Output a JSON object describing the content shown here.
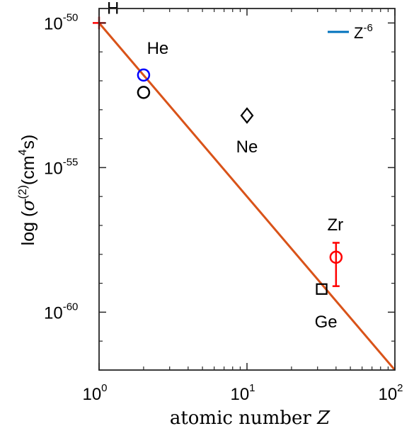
{
  "chart_data": {
    "type": "scatter",
    "x_scale": "log",
    "y_scale": "log",
    "xlim": [
      1,
      100
    ],
    "ylim_exponent": [
      -62,
      -49.5
    ],
    "xlabel_text": "atomic number ",
    "xlabel_symbol": "Z",
    "ylabel": {
      "prefix": "log (",
      "sigma": "σ",
      "sigma_sup": "(2)",
      "mid": "(cm",
      "cm_sup": "4",
      "suffix": "s)"
    },
    "x_ticks": [
      {
        "value": 1,
        "base": "10",
        "exp": "0"
      },
      {
        "value": 10,
        "base": "10",
        "exp": "1"
      },
      {
        "value": 100,
        "base": "10",
        "exp": "2"
      }
    ],
    "y_ticks": [
      {
        "value": -50,
        "base": "10",
        "exp": "-50"
      },
      {
        "value": -55,
        "base": "10",
        "exp": "-55"
      },
      {
        "value": -60,
        "base": "10",
        "exp": "-60"
      }
    ],
    "legend": {
      "label_base": "Z",
      "label_exp": "-6",
      "color": "#0072BD",
      "position": "top-right"
    },
    "fit_line": {
      "color": "#D95319",
      "points": [
        [
          1,
          -50
        ],
        [
          100,
          -62
        ]
      ]
    },
    "points": [
      {
        "label": "H",
        "x": 1,
        "y": -50,
        "marker": "plus",
        "color": "#FF0000"
      },
      {
        "label": "He",
        "x": 2,
        "y": -51.8,
        "marker": "circle",
        "color": "#0000FF"
      },
      {
        "label": "",
        "x": 2,
        "y": -52.4,
        "marker": "circle",
        "color": "#000000"
      },
      {
        "label": "Ne",
        "x": 10,
        "y": -53.2,
        "marker": "diamond",
        "color": "#000000"
      },
      {
        "label": "Zr",
        "x": 40,
        "y": -58.1,
        "marker": "circle",
        "color": "#FF0000",
        "y_err_low": -59.1,
        "y_err_high": -57.6
      },
      {
        "label": "Ge",
        "x": 32,
        "y": -59.2,
        "marker": "square",
        "color": "#000000"
      }
    ],
    "grid": false
  }
}
